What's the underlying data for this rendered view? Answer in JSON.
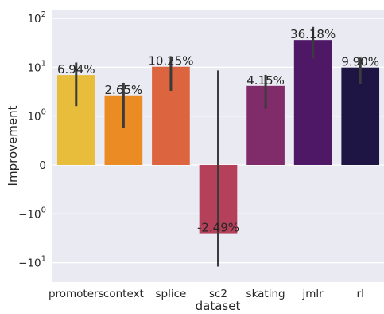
{
  "chart_data": {
    "type": "bar",
    "xlabel": "dataset",
    "ylabel": "Improvement",
    "yscale": "symlog",
    "ylim": [
      -20,
      100
    ],
    "grid": true,
    "categories": [
      "promoters",
      "context",
      "splice",
      "sc2",
      "skating",
      "jmlr",
      "rl"
    ],
    "values": [
      6.94,
      2.65,
      10.25,
      -2.49,
      4.15,
      36.18,
      9.9
    ],
    "value_labels": [
      "6.94%",
      "2.65%",
      "10.25%",
      "-2.49%",
      "4.15%",
      "36.18%",
      "9.90%"
    ],
    "error_bars": [
      [
        1.6,
        12.5
      ],
      [
        0.75,
        4.8
      ],
      [
        3.3,
        16.7
      ],
      [
        -12.0,
        8.6
      ],
      [
        1.4,
        7.0
      ],
      [
        15.0,
        67.0
      ],
      [
        4.6,
        15.8
      ]
    ],
    "colors": [
      "#e8bd3c",
      "#ea8b24",
      "#dc643e",
      "#b4405a",
      "#812c6a",
      "#4e1867",
      "#1e1545"
    ],
    "y_ticks": [
      {
        "value": 100,
        "base": "10",
        "exp": "2"
      },
      {
        "value": 10,
        "base": "10",
        "exp": "1"
      },
      {
        "value": 1,
        "base": "10",
        "exp": "0"
      },
      {
        "value": 0,
        "base": "0",
        "exp": ""
      },
      {
        "value": -1,
        "base": "−10",
        "exp": "0"
      },
      {
        "value": -10,
        "base": "−10",
        "exp": "1"
      }
    ],
    "background_color": "#eaeaf2",
    "errorbar_color": "#3b3b3b"
  }
}
